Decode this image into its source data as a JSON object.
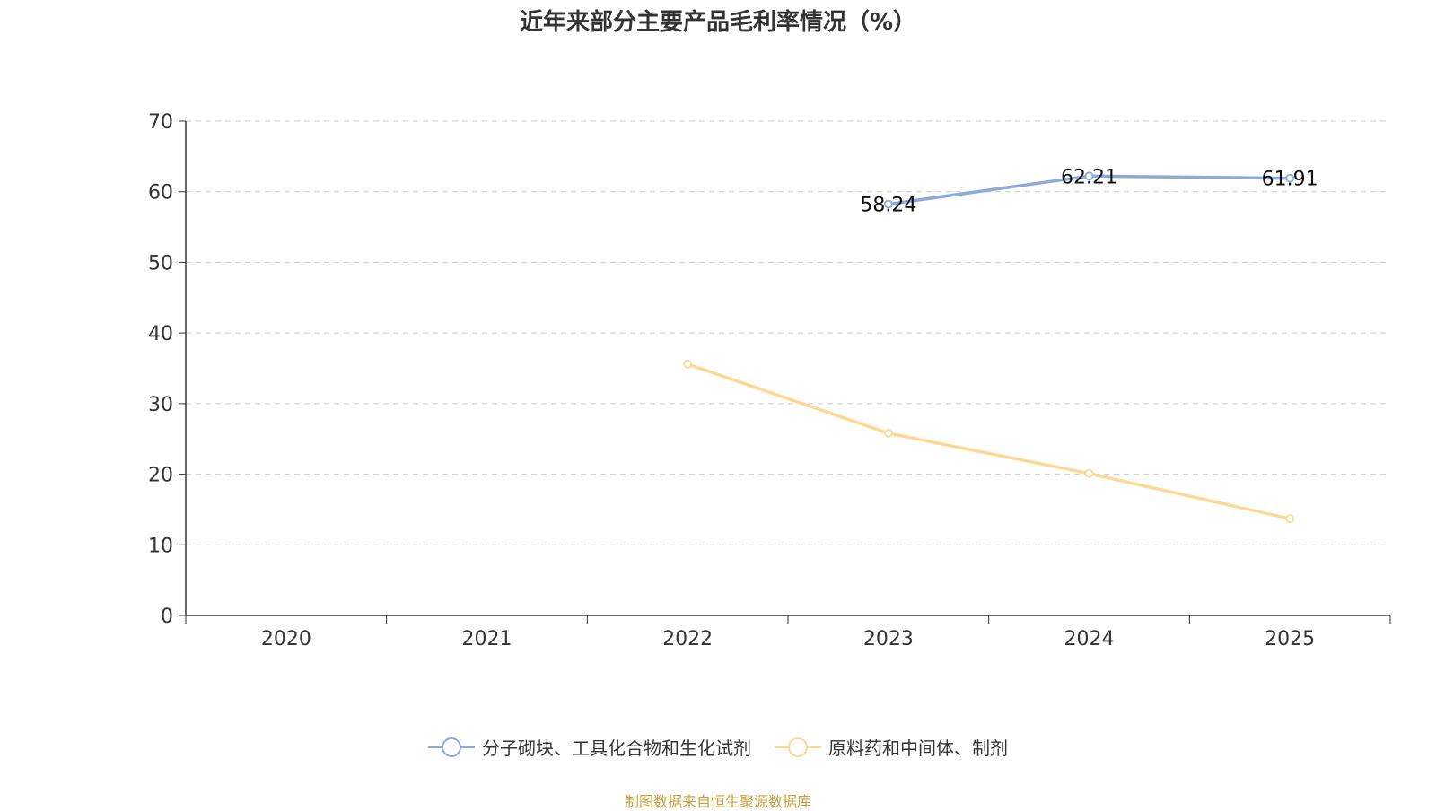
{
  "chart_data": {
    "type": "line",
    "title": "近年来部分主要产品毛利率情况（%）",
    "categories": [
      "2020",
      "2021",
      "2022",
      "2023",
      "2024",
      "2025"
    ],
    "ylim": [
      0,
      70
    ],
    "yticks": [
      0,
      10,
      20,
      30,
      40,
      50,
      60,
      70
    ],
    "grid": true,
    "legend_position": "bottom",
    "series": [
      {
        "name": "分子砌块、工具化合物和生化试剂",
        "color": "#8eaad8",
        "values": [
          null,
          null,
          null,
          58.24,
          62.21,
          61.91
        ],
        "labels": [
          null,
          null,
          null,
          "58.24",
          "62.21",
          "61.91"
        ]
      },
      {
        "name": "原料药和中间体、制剂",
        "color": "#fbd995",
        "values": [
          null,
          null,
          35.6,
          25.8,
          20.1,
          13.7
        ],
        "labels": [
          null,
          null,
          null,
          null,
          null,
          null
        ]
      }
    ]
  },
  "source": "制图数据来自恒生聚源数据库"
}
